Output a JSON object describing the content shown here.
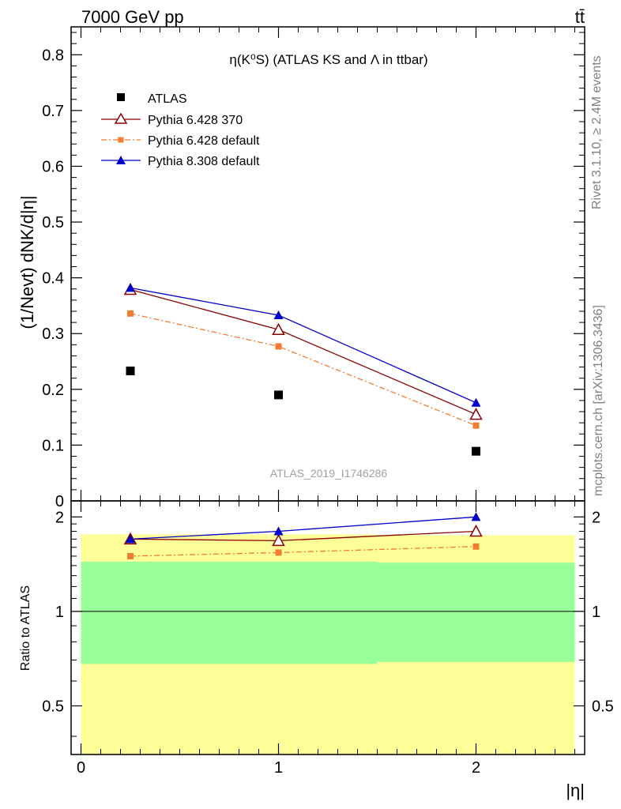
{
  "header": {
    "energy_label": "7000 GeV pp",
    "process_label": "tt̄"
  },
  "side_labels": {
    "rivet": "Rivet 3.1.10, ≥ 2.4M events",
    "mcplots": "mcplots.cern.ch [arXiv:1306.3436]"
  },
  "colors": {
    "atlas": "#000000",
    "pythia6_370": "#8b0000",
    "pythia6_default": "#f47c30",
    "pythia8_default": "#0000cc",
    "band_outer": "#ffff99",
    "band_inner": "#99ff99",
    "watermark": "#a0a0a0"
  },
  "chart_data": [
    {
      "type": "scatter",
      "panel": "main",
      "title": "η(K⁰S) (ATLAS KS and Λ in ttbar)",
      "ylabel": "(1/Nevt) dNK/d|η|",
      "xlabel": "|η|",
      "analysis_id": "ATLAS_2019_I1746286",
      "xlim": [
        -0.05,
        2.55
      ],
      "ylim": [
        0,
        0.85
      ],
      "yticks": [
        0,
        0.1,
        0.2,
        0.3,
        0.4,
        0.5,
        0.6,
        0.7,
        0.8
      ],
      "ytick_labels": [
        "0",
        "0.1",
        "0.2",
        "0.3",
        "0.4",
        "0.5",
        "0.6",
        "0.7",
        "0.8"
      ],
      "legend_position": "top-left",
      "x": [
        0.25,
        1.0,
        2.0
      ],
      "series": [
        {
          "name": "ATLAS",
          "marker": "square",
          "line": "none",
          "color_key": "atlas",
          "values": [
            0.233,
            0.19,
            0.089
          ]
        },
        {
          "name": "Pythia 6.428 370",
          "marker": "open-triangle",
          "line": "solid",
          "color_key": "pythia6_370",
          "values": [
            0.379,
            0.307,
            0.155
          ]
        },
        {
          "name": "Pythia 6.428 default",
          "marker": "small-square",
          "line": "dashdot",
          "color_key": "pythia6_default",
          "values": [
            0.336,
            0.277,
            0.135
          ]
        },
        {
          "name": "Pythia 8.308 default",
          "marker": "triangle",
          "line": "solid",
          "color_key": "pythia8_default",
          "values": [
            0.382,
            0.333,
            0.176
          ]
        }
      ]
    },
    {
      "type": "scatter",
      "panel": "ratio",
      "ylabel": "Ratio to ATLAS",
      "xlabel": "|η|",
      "xlim": [
        -0.05,
        2.55
      ],
      "ylim": [
        0.35,
        2.25
      ],
      "xticks": [
        0,
        1,
        2
      ],
      "xtick_labels": [
        "0",
        "1",
        "2"
      ],
      "yticks": [
        0.5,
        1,
        2
      ],
      "ytick_labels": [
        "0.5",
        "1",
        "2"
      ],
      "reference_line": 1,
      "x": [
        0.25,
        1.0,
        2.0
      ],
      "bands": [
        {
          "x_low": 0.0,
          "x_high": 0.5,
          "outer": [
            0.35,
            1.76
          ],
          "inner": [
            0.68,
            1.44
          ]
        },
        {
          "x_low": 0.5,
          "x_high": 1.5,
          "outer": [
            0.35,
            1.76
          ],
          "inner": [
            0.68,
            1.44
          ]
        },
        {
          "x_low": 1.5,
          "x_high": 2.5,
          "outer": [
            0.35,
            1.75
          ],
          "inner": [
            0.69,
            1.43
          ]
        }
      ],
      "series": [
        {
          "name": "Pythia 6.428 370",
          "marker": "open-triangle",
          "line": "solid",
          "color_key": "pythia6_370",
          "values": [
            1.7,
            1.68,
            1.8
          ]
        },
        {
          "name": "Pythia 6.428 default",
          "marker": "small-square",
          "line": "dashdot",
          "color_key": "pythia6_default",
          "values": [
            1.5,
            1.54,
            1.61
          ]
        },
        {
          "name": "Pythia 8.308 default",
          "marker": "triangle",
          "line": "solid",
          "color_key": "pythia8_default",
          "values": [
            1.7,
            1.8,
            2.0
          ]
        }
      ]
    }
  ]
}
